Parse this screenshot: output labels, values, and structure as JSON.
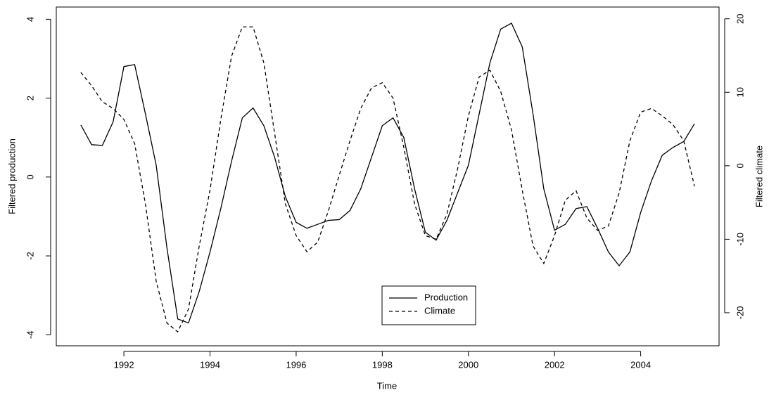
{
  "chart_data": {
    "type": "line",
    "xlabel": "Time",
    "ylabel": "Filtered production",
    "y2label": "Filtered climate",
    "x": [
      1991,
      1991.25,
      1991.5,
      1991.75,
      1992,
      1992.25,
      1992.5,
      1992.75,
      1993,
      1993.25,
      1993.5,
      1993.75,
      1994,
      1994.25,
      1994.5,
      1994.75,
      1995,
      1995.25,
      1995.5,
      1995.75,
      1996,
      1996.25,
      1996.5,
      1996.75,
      1997,
      1997.25,
      1997.5,
      1997.75,
      1998,
      1998.25,
      1998.5,
      1998.75,
      1999,
      1999.25,
      1999.5,
      1999.75,
      2000,
      2000.25,
      2000.5,
      2000.75,
      2001,
      2001.25,
      2001.5,
      2001.75,
      2002,
      2002.25,
      2002.5,
      2002.75,
      2003,
      2003.25,
      2003.5,
      2003.75,
      2004,
      2004.25,
      2004.5,
      2004.75,
      2005,
      2005.25
    ],
    "series": [
      {
        "name": "Production",
        "color": "#000000",
        "dash": "solid",
        "axis": "y",
        "values": [
          1.32,
          0.82,
          0.8,
          1.4,
          2.8,
          2.85,
          1.6,
          0.3,
          -1.8,
          -3.6,
          -3.7,
          -2.9,
          -1.9,
          -0.8,
          0.4,
          1.5,
          1.75,
          1.3,
          0.5,
          -0.5,
          -1.15,
          -1.3,
          -1.2,
          -1.1,
          -1.08,
          -0.85,
          -0.3,
          0.5,
          1.3,
          1.5,
          1.0,
          -0.3,
          -1.4,
          -1.6,
          -1.1,
          -0.4,
          0.3,
          1.6,
          2.9,
          3.75,
          3.9,
          3.3,
          1.6,
          -0.3,
          -1.35,
          -1.2,
          -0.8,
          -0.75,
          -1.3,
          -1.9,
          -2.25,
          -1.9,
          -0.9,
          -0.1,
          0.55,
          0.75,
          0.9,
          1.35
        ]
      },
      {
        "name": "Climate",
        "color": "#000000",
        "dash": "dashed",
        "axis": "y2",
        "values": [
          12.7,
          10.9,
          8.7,
          7.8,
          6.3,
          3.0,
          -5.2,
          -15.7,
          -21.4,
          -22.6,
          -19.5,
          -10.9,
          -3.3,
          6.3,
          14.9,
          18.9,
          18.9,
          14,
          4.4,
          -5.2,
          -9.5,
          -11.7,
          -10.4,
          -6.1,
          -1.3,
          3.4,
          7.8,
          10.6,
          11.3,
          9.2,
          2.5,
          -5.2,
          -9.5,
          -10,
          -6.6,
          -0.4,
          6.8,
          12.1,
          13,
          10.1,
          4.9,
          -3.3,
          -10.9,
          -13.3,
          -9.5,
          -4.7,
          -3.4,
          -7.1,
          -8.8,
          -8.2,
          -3.7,
          3.4,
          7.3,
          7.8,
          6.8,
          5.6,
          3.4,
          -2.8
        ]
      }
    ],
    "xlim": [
      1990.43,
      2005.82
    ],
    "xticks": [
      1992,
      1994,
      1996,
      1998,
      2000,
      2002,
      2004
    ],
    "ylim": [
      -4.28,
      4.31
    ],
    "yticks": [
      -4,
      -2,
      0,
      2,
      4
    ],
    "y2lim": [
      -24.5,
      21.6
    ],
    "y2ticks": [
      -20,
      -10,
      0,
      10,
      20
    ],
    "grid": false,
    "legend": "bottom"
  }
}
